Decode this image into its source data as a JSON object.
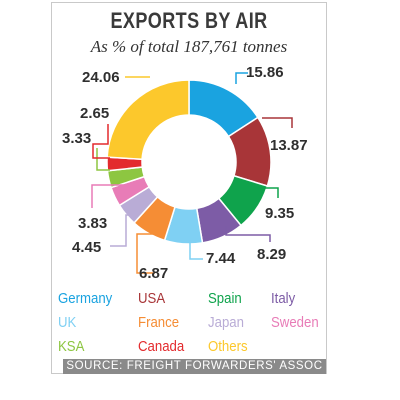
{
  "chart_data": {
    "type": "pie",
    "donut": true,
    "title": "EXPORTS BY AIR",
    "subtitle": "As % of total 187,761 tonnes",
    "source": "SOURCE: FREIGHT FORWARDERS' ASSOC",
    "slices": [
      {
        "name": "Germany",
        "value": 15.86,
        "label": "15.86",
        "color": "#1aa3e0"
      },
      {
        "name": "USA",
        "value": 13.87,
        "label": "13.87",
        "color": "#a83538"
      },
      {
        "name": "Spain",
        "value": 9.35,
        "label": "9.35",
        "color": "#0fa34c"
      },
      {
        "name": "Italy",
        "value": 8.29,
        "label": "8.29",
        "color": "#7d5ca6"
      },
      {
        "name": "UK",
        "value": 7.44,
        "label": "7.44",
        "color": "#7fd0f3"
      },
      {
        "name": "France",
        "value": 6.87,
        "label": "6.87",
        "color": "#f58d35"
      },
      {
        "name": "Japan",
        "value": 4.45,
        "label": "4.45",
        "color": "#b9acd6"
      },
      {
        "name": "Sweden",
        "value": 3.83,
        "label": "3.83",
        "color": "#e87cb7"
      },
      {
        "name": "KSA",
        "value": 3.33,
        "label": "3.33",
        "color": "#8dc641"
      },
      {
        "name": "Canada",
        "value": 2.65,
        "label": "2.65",
        "color": "#e32a2d"
      },
      {
        "name": "Others",
        "value": 24.06,
        "label": "24.06",
        "color": "#fcc82c"
      }
    ],
    "legend": [
      {
        "name": "Germany",
        "color": "#1aa3e0"
      },
      {
        "name": "USA",
        "color": "#a83538"
      },
      {
        "name": "Spain",
        "color": "#0fa34c"
      },
      {
        "name": "Italy",
        "color": "#7d5ca6"
      },
      {
        "name": "UK",
        "color": "#7fd0f3"
      },
      {
        "name": "France",
        "color": "#f58d35"
      },
      {
        "name": "Japan",
        "color": "#b9acd6"
      },
      {
        "name": "Sweden",
        "color": "#e87cb7"
      },
      {
        "name": "KSA",
        "color": "#8dc641"
      },
      {
        "name": "Canada",
        "color": "#e32a2d"
      },
      {
        "name": "Others",
        "color": "#fcc82c"
      }
    ],
    "legend_placement": "bottom"
  }
}
